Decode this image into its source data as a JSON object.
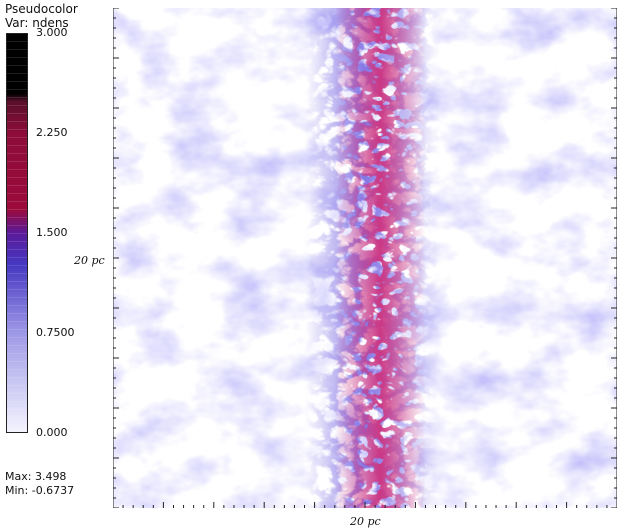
{
  "legend": {
    "title_line1": "Pseudocolor",
    "title_line2": "Var: ndens",
    "ticks": [
      {
        "label": "3.000",
        "value": 3.0
      },
      {
        "label": "2.250",
        "value": 2.25
      },
      {
        "label": "1.500",
        "value": 1.5
      },
      {
        "label": "0.7500",
        "value": 0.75
      },
      {
        "label": "0.000",
        "value": 0.0
      }
    ],
    "max_label": "Max:  3.498",
    "min_label": "Min: -0.6737",
    "colors": {
      "low": "#eeeefc",
      "mid": "#3a2fc4",
      "high": "#9a0b3c",
      "top": "#000000"
    }
  },
  "axes": {
    "x_label": "20  pc",
    "y_label": "20  pc"
  }
}
